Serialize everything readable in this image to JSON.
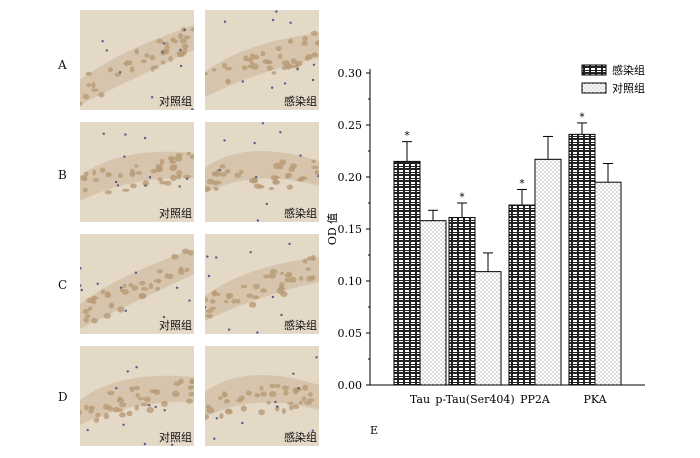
{
  "rows": [
    {
      "label": "A",
      "left_caption": "对照组",
      "right_caption": "感染组"
    },
    {
      "label": "B",
      "left_caption": "对照组",
      "right_caption": "感染组"
    },
    {
      "label": "C",
      "left_caption": "对照组",
      "right_caption": "感染组"
    },
    {
      "label": "D",
      "left_caption": "对照组",
      "right_caption": "感染组"
    }
  ],
  "chart_panel_label": "E",
  "colors": {
    "tissue_bg": "#e4d8c6",
    "cell_fill": "#b89a77",
    "nucleus": "#5a5a8a"
  },
  "chart_data": {
    "type": "bar",
    "categories": [
      "Tau",
      "p-Tau(Ser404)",
      "PP2A",
      "PKA"
    ],
    "series": [
      {
        "name": "感染组",
        "values": [
          0.215,
          0.161,
          0.173,
          0.241
        ],
        "errors": [
          0.019,
          0.014,
          0.015,
          0.011
        ],
        "sig": [
          "*",
          "*",
          "*",
          "*"
        ]
      },
      {
        "name": "对照组",
        "values": [
          0.158,
          0.109,
          0.217,
          0.195
        ],
        "errors": [
          0.01,
          0.018,
          0.022,
          0.018
        ],
        "sig": [
          "",
          "",
          "",
          ""
        ]
      }
    ],
    "ylabel": "OD 值",
    "xlabel": "",
    "ylim": [
      0,
      0.3
    ],
    "yticks": [
      "0.00",
      "0.05",
      "0.10",
      "0.15",
      "0.20",
      "0.25",
      "0.30"
    ],
    "legend_position": "top-right",
    "grid": false
  }
}
